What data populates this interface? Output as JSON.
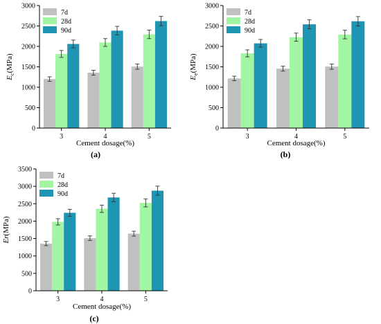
{
  "chart_data": [
    {
      "type": "bar",
      "panel_label": "(a)",
      "categories": [
        "3",
        "4",
        "5"
      ],
      "xlabel": "Cement dosage(%)",
      "ylabel_main": "E",
      "ylabel_sub": "c",
      "ylabel_unit": "(MPa)",
      "ylim": [
        0,
        3000
      ],
      "yticks": [
        0,
        500,
        1000,
        1500,
        2000,
        2500,
        3000
      ],
      "legend_position": "top-left",
      "series": [
        {
          "name": "7d",
          "color": "#c0c0c0",
          "values": [
            1200,
            1355,
            1505
          ],
          "errors": [
            55,
            60,
            65
          ]
        },
        {
          "name": "28d",
          "color": "#a2f5a2",
          "values": [
            1815,
            2095,
            2295
          ],
          "errors": [
            85,
            95,
            105
          ]
        },
        {
          "name": "90d",
          "color": "#1f95b4",
          "values": [
            2060,
            2385,
            2620
          ],
          "errors": [
            95,
            105,
            115
          ]
        }
      ]
    },
    {
      "type": "bar",
      "panel_label": "(b)",
      "categories": [
        "3",
        "4",
        "5"
      ],
      "xlabel": "Cement dosage(%)",
      "ylabel_main": "E",
      "ylabel_sub": "e",
      "ylabel_unit": "(MPa)",
      "ylim": [
        0,
        3000
      ],
      "yticks": [
        0,
        500,
        1000,
        1500,
        2000,
        2500,
        3000
      ],
      "legend_position": "top-left",
      "series": [
        {
          "name": "7d",
          "color": "#c0c0c0",
          "values": [
            1215,
            1455,
            1505
          ],
          "errors": [
            55,
            60,
            65
          ]
        },
        {
          "name": "28d",
          "color": "#a2f5a2",
          "values": [
            1830,
            2225,
            2290
          ],
          "errors": [
            85,
            100,
            105
          ]
        },
        {
          "name": "90d",
          "color": "#1f95b4",
          "values": [
            2075,
            2540,
            2615
          ],
          "errors": [
            95,
            110,
            115
          ]
        }
      ]
    },
    {
      "type": "bar",
      "panel_label": "(c)",
      "categories": [
        "3",
        "4",
        "5"
      ],
      "xlabel": "Cement dosage(%)",
      "ylabel_main": "Er",
      "ylabel_sub": "",
      "ylabel_unit": "(MPa)",
      "ylim": [
        0,
        3500
      ],
      "yticks": [
        0,
        500,
        1000,
        1500,
        2000,
        2500,
        3000,
        3500
      ],
      "legend_position": "top-left",
      "series": [
        {
          "name": "7d",
          "color": "#c0c0c0",
          "values": [
            1355,
            1510,
            1640
          ],
          "errors": [
            60,
            65,
            70
          ]
        },
        {
          "name": "28d",
          "color": "#a2f5a2",
          "values": [
            1980,
            2355,
            2525
          ],
          "errors": [
            90,
            105,
            115
          ]
        },
        {
          "name": "90d",
          "color": "#1f95b4",
          "values": [
            2240,
            2680,
            2875
          ],
          "errors": [
            100,
            120,
            130
          ]
        }
      ]
    }
  ]
}
